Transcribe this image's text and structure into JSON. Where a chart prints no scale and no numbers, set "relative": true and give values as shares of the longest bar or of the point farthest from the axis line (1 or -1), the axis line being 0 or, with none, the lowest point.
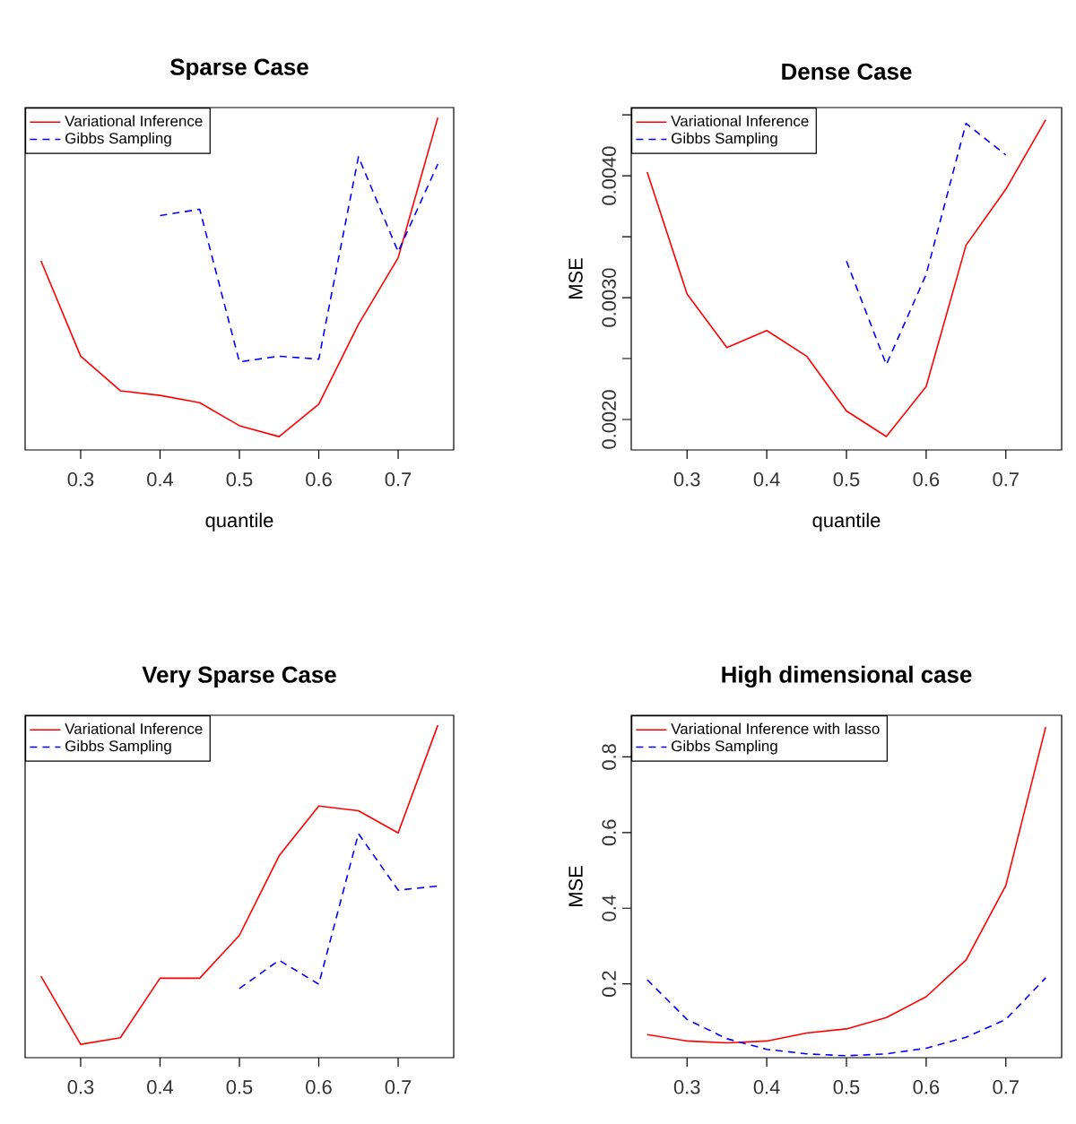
{
  "chart_data": [
    {
      "type": "line",
      "title": "Sparse Case",
      "xlabel": "quantile",
      "relative": true,
      "tick_labels": "x",
      "legend": "top left",
      "x": [
        0.25,
        0.3,
        0.35,
        0.4,
        0.45,
        0.5,
        0.55,
        0.6,
        0.65,
        0.7,
        0.75
      ],
      "xlim": [
        0.23,
        0.77
      ],
      "xticks": [
        0.3,
        0.4,
        0.5,
        0.6,
        0.7
      ],
      "series": [
        {
          "name": "Variational Inference",
          "color": "#ff0000",
          "line_style": "solid",
          "values": [
            0.569,
            0.282,
            0.178,
            0.164,
            0.142,
            0.073,
            0.04,
            0.138,
            0.378,
            0.578,
            1
          ]
        },
        {
          "name": "Gibbs Sampling",
          "color": "#0000ff",
          "line_style": "dashed",
          "values": [
            null,
            null,
            null,
            0.705,
            0.724,
            0.265,
            0.282,
            0.273,
            0.882,
            0.596,
            0.86
          ]
        }
      ]
    },
    {
      "type": "line",
      "title": "Dense Case",
      "xlabel": "quantile",
      "ylabel": "MSE",
      "legend": "top left",
      "x": [
        0.25,
        0.3,
        0.35,
        0.4,
        0.45,
        0.5,
        0.55,
        0.6,
        0.65,
        0.7,
        0.75
      ],
      "xlim": [
        0.23,
        0.77
      ],
      "xticks": [
        0.3,
        0.4,
        0.5,
        0.6,
        0.7
      ],
      "ylim": [
        0.00175,
        0.00456
      ],
      "yticks": [
        {
          "value": 0.002,
          "label": "0.0020"
        },
        {
          "value": 0.0025,
          "label": null
        },
        {
          "value": 0.003,
          "label": "0.0030"
        },
        {
          "value": 0.0035,
          "label": null
        },
        {
          "value": 0.004,
          "label": "0.0040"
        },
        {
          "value": 0.0045,
          "label": null
        }
      ],
      "series": [
        {
          "name": "Variational Inference",
          "color": "#ff0000",
          "line_style": "solid",
          "values": [
            0.00403,
            0.00303,
            0.00259,
            0.00273,
            0.00252,
            0.00207,
            0.00186,
            0.00227,
            0.00343,
            0.00389,
            0.00446
          ]
        },
        {
          "name": "Gibbs Sampling",
          "color": "#0000ff",
          "line_style": "dashed",
          "values": [
            null,
            null,
            null,
            null,
            null,
            0.0033,
            0.00245,
            0.00319,
            0.00443,
            0.00417,
            null
          ]
        }
      ]
    },
    {
      "type": "line",
      "title": "Very Sparse Case",
      "relative": true,
      "tick_labels": "x",
      "legend": "top left",
      "x": [
        0.25,
        0.3,
        0.35,
        0.4,
        0.45,
        0.5,
        0.55,
        0.6,
        0.65,
        0.7,
        0.75
      ],
      "xlim": [
        0.23,
        0.77
      ],
      "xticks": [
        0.3,
        0.4,
        0.5,
        0.6,
        0.7
      ],
      "series": [
        {
          "name": "Variational Inference",
          "color": "#ff0000",
          "line_style": "solid",
          "values": [
            0.245,
            0.04,
            0.06,
            0.239,
            0.239,
            0.368,
            0.607,
            0.757,
            0.743,
            0.676,
            1
          ]
        },
        {
          "name": "Gibbs Sampling",
          "color": "#0000ff",
          "line_style": "dashed",
          "values": [
            null,
            null,
            null,
            null,
            null,
            0.208,
            0.293,
            0.221,
            0.674,
            0.504,
            0.516
          ]
        }
      ]
    },
    {
      "type": "line",
      "title": "High dimensional case",
      "ylabel": "MSE",
      "legend": "top left",
      "x": [
        0.25,
        0.3,
        0.35,
        0.4,
        0.45,
        0.5,
        0.55,
        0.6,
        0.65,
        0.7,
        0.75
      ],
      "xlim": [
        0.23,
        0.77
      ],
      "xticks": [
        0.3,
        0.4,
        0.5,
        0.6,
        0.7
      ],
      "ylim": [
        0.005,
        0.91
      ],
      "yticks": [
        0.2,
        0.4,
        0.6,
        0.8
      ],
      "series": [
        {
          "name": "Variational Inference with lasso",
          "color": "#ff0000",
          "line_style": "solid",
          "values": [
            0.066,
            0.049,
            0.044,
            0.049,
            0.07,
            0.081,
            0.111,
            0.166,
            0.263,
            0.46,
            0.879
          ]
        },
        {
          "name": "Gibbs Sampling",
          "color": "#0000ff",
          "line_style": "dashed",
          "values": [
            0.211,
            0.106,
            0.055,
            0.027,
            0.015,
            0.01,
            0.015,
            0.03,
            0.059,
            0.106,
            0.216
          ]
        }
      ]
    }
  ]
}
